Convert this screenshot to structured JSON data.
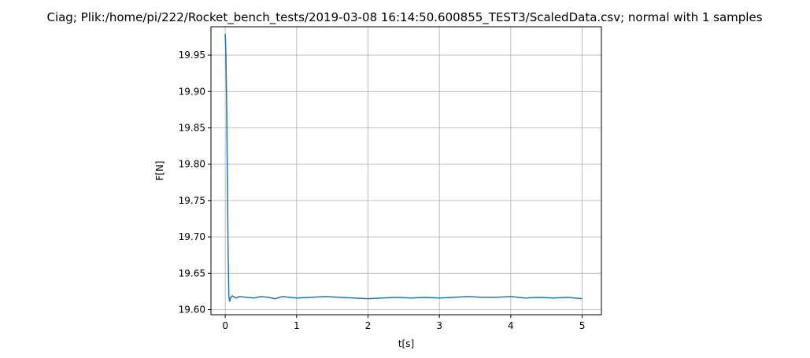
{
  "chart_data": {
    "type": "line",
    "title": "Ciag; Plik:/home/pi/222/Rocket_bench_tests/2019-03-08 16:14:50.600855_TEST3/ScaledData.csv; normal with 1 samples",
    "xlabel": "t[s]",
    "ylabel": "F[N]",
    "xlim": [
      -0.2,
      5.27
    ],
    "ylim": [
      19.593,
      19.989
    ],
    "xticks": [
      0,
      1,
      2,
      3,
      4,
      5
    ],
    "xtick_labels": [
      "0",
      "1",
      "2",
      "3",
      "4",
      "5"
    ],
    "yticks": [
      19.6,
      19.65,
      19.7,
      19.75,
      19.8,
      19.85,
      19.9,
      19.95
    ],
    "ytick_labels": [
      "19.60",
      "19.65",
      "19.70",
      "19.75",
      "19.80",
      "19.85",
      "19.90",
      "19.95"
    ],
    "grid": true,
    "series": [
      {
        "color": "#1f77b4",
        "x": [
          0.0,
          0.01,
          0.02,
          0.03,
          0.04,
          0.05,
          0.06,
          0.08,
          0.1,
          0.15,
          0.2,
          0.3,
          0.4,
          0.5,
          0.6,
          0.7,
          0.8,
          0.9,
          1.0,
          1.2,
          1.4,
          1.6,
          1.8,
          2.0,
          2.2,
          2.4,
          2.6,
          2.8,
          3.0,
          3.2,
          3.4,
          3.6,
          3.8,
          4.0,
          4.2,
          4.4,
          4.6,
          4.8,
          5.0
        ],
        "y": [
          19.979,
          19.95,
          19.88,
          19.78,
          19.68,
          19.62,
          19.611,
          19.617,
          19.619,
          19.616,
          19.618,
          19.617,
          19.616,
          19.618,
          19.617,
          19.615,
          19.618,
          19.617,
          19.616,
          19.617,
          19.618,
          19.617,
          19.616,
          19.615,
          19.616,
          19.617,
          19.616,
          19.617,
          19.616,
          19.617,
          19.618,
          19.617,
          19.617,
          19.618,
          19.616,
          19.617,
          19.616,
          19.617,
          19.615
        ]
      }
    ]
  }
}
